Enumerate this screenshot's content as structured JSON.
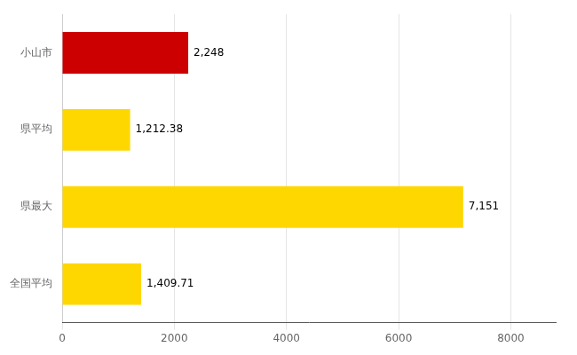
{
  "chart_data": {
    "type": "bar",
    "orientation": "horizontal",
    "categories": [
      "全国平均",
      "県最大",
      "県平均",
      "小山市"
    ],
    "values": [
      1409.71,
      7151,
      1212.38,
      2248
    ],
    "value_labels": [
      "1,409.71",
      "7,151",
      "1,212.38",
      "2,248"
    ],
    "colors": [
      "#FFD700",
      "#FFD700",
      "#FFD700",
      "#CC0000"
    ],
    "xlim": [
      0,
      8800
    ],
    "xticks": [
      0,
      2000,
      4000,
      6000,
      8000
    ],
    "grid": true,
    "data_labels": true
  }
}
